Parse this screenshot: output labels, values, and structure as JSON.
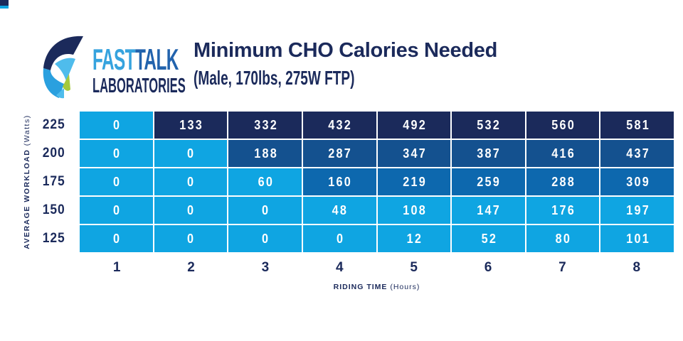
{
  "brand": {
    "fast": "FAST",
    "talk": "TALK",
    "laboratories": "LABORATORIES"
  },
  "header": {
    "title": "Minimum CHO Calories Needed",
    "subtitle": "(Male, 170lbs, 275W FTP)"
  },
  "chart_data": {
    "type": "heatmap",
    "title": "Minimum CHO Calories Needed",
    "subtitle": "(Male, 170lbs, 275W FTP)",
    "xlabel_bold": "RIDING TIME",
    "xlabel_unit": " (Hours)",
    "ylabel_bold": "AVERAGE WORKLOAD",
    "ylabel_unit": " (Watts)",
    "x_categories": [
      "1",
      "2",
      "3",
      "4",
      "5",
      "6",
      "7",
      "8"
    ],
    "y_categories": [
      "225",
      "200",
      "175",
      "150",
      "125"
    ],
    "rows": [
      {
        "workload": "225",
        "values": [
          0,
          133,
          332,
          432,
          492,
          532,
          560,
          581
        ],
        "levels": [
          0,
          3,
          3,
          3,
          3,
          3,
          3,
          3
        ]
      },
      {
        "workload": "200",
        "values": [
          0,
          0,
          188,
          287,
          347,
          387,
          416,
          437
        ],
        "levels": [
          0,
          0,
          2,
          2,
          2,
          2,
          2,
          2
        ]
      },
      {
        "workload": "175",
        "values": [
          0,
          0,
          60,
          160,
          219,
          259,
          288,
          309
        ],
        "levels": [
          0,
          0,
          0,
          1,
          1,
          1,
          1,
          1
        ]
      },
      {
        "workload": "150",
        "values": [
          0,
          0,
          0,
          48,
          108,
          147,
          176,
          197
        ],
        "levels": [
          0,
          0,
          0,
          0,
          0,
          0,
          0,
          0
        ]
      },
      {
        "workload": "125",
        "values": [
          0,
          0,
          0,
          0,
          12,
          52,
          80,
          101
        ],
        "levels": [
          0,
          0,
          0,
          0,
          0,
          0,
          0,
          0
        ]
      }
    ],
    "level_colors": [
      "#0FA5E2",
      "#0D68AE",
      "#14518F",
      "#1B2A5B"
    ],
    "legend_position": "none",
    "grid": true
  },
  "colors": {
    "navy": "#1B2A5B",
    "blue200": "#14518F",
    "blue175": "#0D68AE",
    "lightblue": "#0FA5E2",
    "logoFast": "#36A3DE",
    "logoTalk": "#2263AD",
    "logoBlue": "#2AA0DF",
    "logoLight": "#4FBCEC",
    "lime": "#A5C93B"
  }
}
